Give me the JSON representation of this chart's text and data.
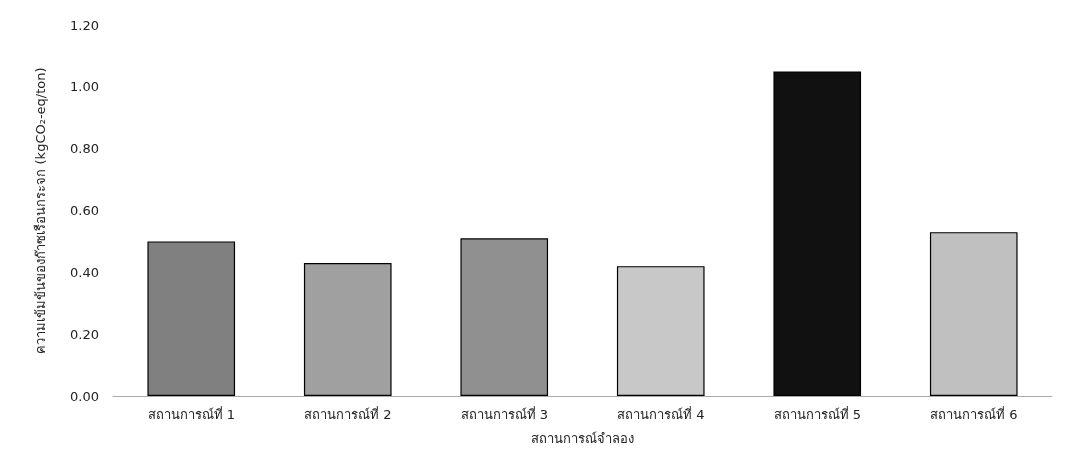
{
  "chart_data": {
    "type": "bar",
    "xlabel": "สถานการณ์จำลอง",
    "ylabel": "ความเข้มข้นของก๊าซเรือนกระจก (kgCO₂-eq/ton)",
    "categories": [
      "สถานการณ์ที่ 1",
      "สถานการณ์ที่ 2",
      "สถานการณ์ที่ 3",
      "สถานการณ์ที่ 4",
      "สถานการณ์ที่ 5",
      "สถานการณ์ที่ 6"
    ],
    "values": [
      0.5,
      0.43,
      0.51,
      0.42,
      1.05,
      0.53
    ],
    "colors": [
      "#808080",
      "#a0a0a0",
      "#909090",
      "#c8c8c8",
      "#111111",
      "#c0c0c0"
    ],
    "ylim": [
      0,
      1.2
    ],
    "yticks": [
      {
        "value": 0,
        "label": "0.00"
      },
      {
        "value": 0.2,
        "label": "0.20"
      },
      {
        "value": 0.4,
        "label": "0.40"
      },
      {
        "value": 0.6,
        "label": "0.60"
      },
      {
        "value": 0.8,
        "label": "0.80"
      },
      {
        "value": 1,
        "label": "1.00"
      },
      {
        "value": 1.2,
        "label": "1.20"
      }
    ],
    "grid": false
  }
}
